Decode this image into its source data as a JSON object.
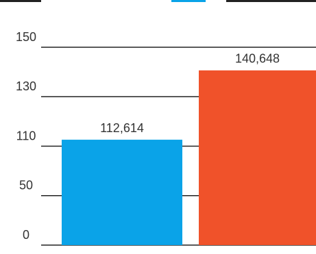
{
  "chart_data": {
    "type": "bar",
    "categories": [
      null,
      null
    ],
    "values": [
      112.614,
      140.648
    ],
    "value_labels": [
      "112,614",
      "140,648"
    ],
    "colors": [
      "#0aa3e8",
      "#f0522a"
    ],
    "ylim": [
      0,
      150
    ],
    "yticks": [
      0,
      50,
      110,
      130,
      150
    ],
    "grid": true
  }
}
